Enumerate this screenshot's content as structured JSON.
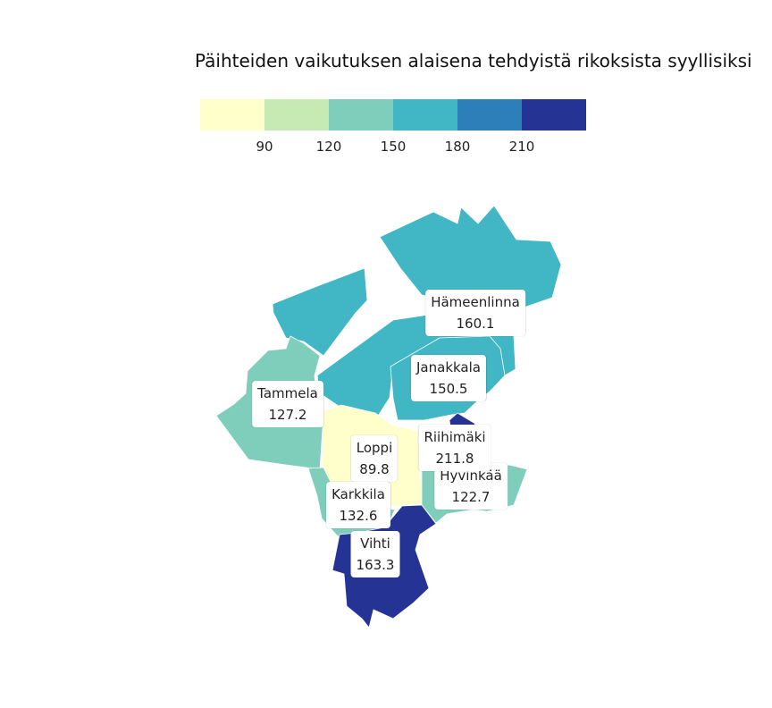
{
  "title": "Päihteiden vaikutuksen alaisena tehdyistä rikoksista syyllisiksi",
  "legend": {
    "colors": [
      "#ffffcc",
      "#c7e9b4",
      "#7fcdbb",
      "#41b6c4",
      "#2c7fb8",
      "#253494"
    ],
    "ticks": [
      "90",
      "120",
      "150",
      "180",
      "210"
    ]
  },
  "chart_data": {
    "type": "choropleth",
    "regions": [
      {
        "name": "Hämeenlinna",
        "value": 160.1,
        "color": "#41b6c4"
      },
      {
        "name": "Janakkala",
        "value": 150.5,
        "color": "#41b6c4"
      },
      {
        "name": "Tammela",
        "value": 127.2,
        "color": "#7fcdbb"
      },
      {
        "name": "Riihimäki",
        "value": 211.8,
        "color": "#253494"
      },
      {
        "name": "Loppi",
        "value": 89.8,
        "color": "#ffffcc"
      },
      {
        "name": "Hyvinkää",
        "value": 122.7,
        "color": "#7fcdbb"
      },
      {
        "name": "Karkkila",
        "value": 132.6,
        "color": "#7fcdbb"
      },
      {
        "name": "Vihti",
        "value": 163.3,
        "color": "#41b6c4"
      }
    ]
  }
}
